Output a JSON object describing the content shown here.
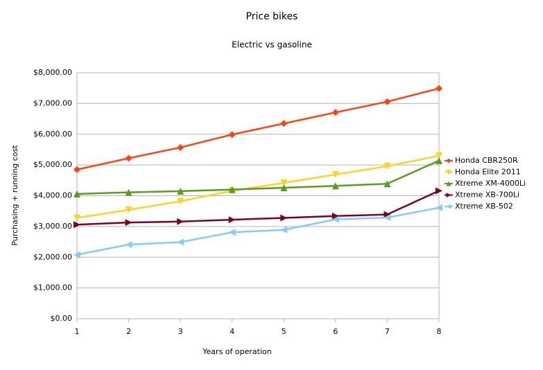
{
  "chart_data": {
    "type": "line",
    "title": "Price bikes",
    "subtitle": "Electric vs gasoline",
    "x_label": "Years of operation",
    "y_label": "Purchasing + running cost",
    "x": [
      1,
      2,
      3,
      4,
      5,
      6,
      7,
      8
    ],
    "xlim": [
      1,
      8
    ],
    "xticks": [
      1,
      2,
      3,
      4,
      5,
      6,
      7,
      8
    ],
    "ylim": [
      0,
      8000
    ],
    "yticks": [
      {
        "value": 0,
        "label": "$0.00"
      },
      {
        "value": 1000,
        "label": "$1,000.00"
      },
      {
        "value": 2000,
        "label": "$2,000.00"
      },
      {
        "value": 3000,
        "label": "$3,000.00"
      },
      {
        "value": 4000,
        "label": "$4,000.00"
      },
      {
        "value": 5000,
        "label": "$5,000.00"
      },
      {
        "value": 6000,
        "label": "$6,000.00"
      },
      {
        "value": 7000,
        "label": "$7,000.00"
      },
      {
        "value": 8000,
        "label": "$8,000.00"
      }
    ],
    "grid": true,
    "legend": "right",
    "series": [
      {
        "name": "Honda CBR250R",
        "color": "#ff420e",
        "marker": "diamond",
        "values": [
          4850,
          5220,
          5570,
          5990,
          6350,
          6710,
          7060,
          7490
        ]
      },
      {
        "name": "Honda Elite 2011",
        "color": "#ffd320",
        "marker": "down",
        "values": [
          3280,
          3540,
          3820,
          4160,
          4420,
          4690,
          4960,
          5300
        ]
      },
      {
        "name": "Xtreme XM-4000Li",
        "color": "#579d1c",
        "marker": "up",
        "values": [
          4060,
          4110,
          4150,
          4200,
          4260,
          4320,
          4390,
          5140
        ]
      },
      {
        "name": "Xtreme XB-700Li",
        "color": "#7e0021",
        "marker": "right",
        "values": [
          3060,
          3130,
          3160,
          3220,
          3280,
          3340,
          3390,
          4160
        ]
      },
      {
        "name": "Xtreme XB-502",
        "color": "#83caff",
        "marker": "left",
        "values": [
          2080,
          2410,
          2490,
          2810,
          2890,
          3230,
          3290,
          3610
        ]
      }
    ]
  }
}
